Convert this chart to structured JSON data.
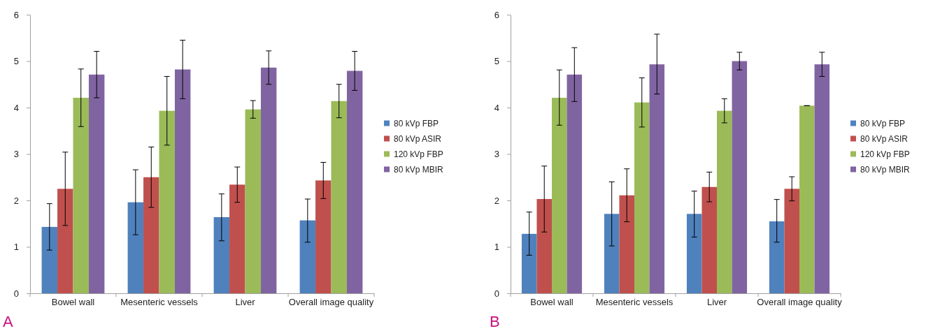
{
  "chart_data": [
    {
      "type": "bar",
      "categories": [
        "Bowel wall",
        "Mesenteric vessels",
        "Liver",
        "Overall image quality"
      ],
      "ylim": [
        0,
        6
      ],
      "yticks": [
        0,
        1,
        2,
        3,
        4,
        5,
        6
      ],
      "legend": "right",
      "annotations": [
        "A"
      ],
      "series": [
        {
          "name": "80 kVp FBP",
          "color": "#4f81bd",
          "values": [
            1.43,
            1.96,
            1.64,
            1.57
          ],
          "errors": [
            [
              0.93,
              1.93
            ],
            [
              1.26,
              2.66
            ],
            [
              1.13,
              2.14
            ],
            [
              1.1,
              2.03
            ]
          ]
        },
        {
          "name": "80 kVp ASIR",
          "color": "#c0504d",
          "values": [
            2.25,
            2.5,
            2.34,
            2.43
          ],
          "errors": [
            [
              1.46,
              3.04
            ],
            [
              1.85,
              3.15
            ],
            [
              1.96,
              2.72
            ],
            [
              2.04,
              2.82
            ]
          ]
        },
        {
          "name": "120 kVp FBP",
          "color": "#9bbb59",
          "values": [
            4.21,
            3.93,
            3.96,
            4.14
          ],
          "errors": [
            [
              3.59,
              4.83
            ],
            [
              3.19,
              4.67
            ],
            [
              3.77,
              4.15
            ],
            [
              3.78,
              4.5
            ]
          ]
        },
        {
          "name": "80 kVp MBIR",
          "color": "#8064a2",
          "values": [
            4.71,
            4.82,
            4.86,
            4.79
          ],
          "errors": [
            [
              4.21,
              5.21
            ],
            [
              4.19,
              5.45
            ],
            [
              4.5,
              5.22
            ],
            [
              4.37,
              5.21
            ]
          ]
        }
      ]
    },
    {
      "type": "bar",
      "categories": [
        "Bowel wall",
        "Mesenteric vessels",
        "Liver",
        "Overall image quality"
      ],
      "ylim": [
        0,
        6
      ],
      "yticks": [
        0,
        1,
        2,
        3,
        4,
        5,
        6
      ],
      "legend": "right",
      "annotations": [
        "B"
      ],
      "series": [
        {
          "name": "80 kVp FBP",
          "color": "#4f81bd",
          "values": [
            1.28,
            1.71,
            1.71,
            1.55
          ],
          "errors": [
            [
              0.82,
              1.75
            ],
            [
              1.02,
              2.4
            ],
            [
              1.21,
              2.2
            ],
            [
              1.1,
              2.02
            ]
          ]
        },
        {
          "name": "80 kVp ASIR",
          "color": "#c0504d",
          "values": [
            2.03,
            2.11,
            2.29,
            2.25
          ],
          "errors": [
            [
              1.32,
              2.74
            ],
            [
              1.54,
              2.68
            ],
            [
              1.97,
              2.61
            ],
            [
              1.99,
              2.51
            ]
          ]
        },
        {
          "name": "120 kVp FBP",
          "color": "#9bbb59",
          "values": [
            4.21,
            4.11,
            3.93,
            4.04
          ],
          "errors": [
            [
              3.62,
              4.81
            ],
            [
              3.58,
              4.64
            ],
            [
              3.67,
              4.19
            ],
            [
              4.04,
              4.04
            ]
          ]
        },
        {
          "name": "80 kVp MBIR",
          "color": "#8064a2",
          "values": [
            4.71,
            4.93,
            5.0,
            4.93
          ],
          "errors": [
            [
              4.13,
              5.29
            ],
            [
              4.29,
              5.58
            ],
            [
              4.81,
              5.19
            ],
            [
              4.67,
              5.19
            ]
          ]
        }
      ]
    }
  ]
}
